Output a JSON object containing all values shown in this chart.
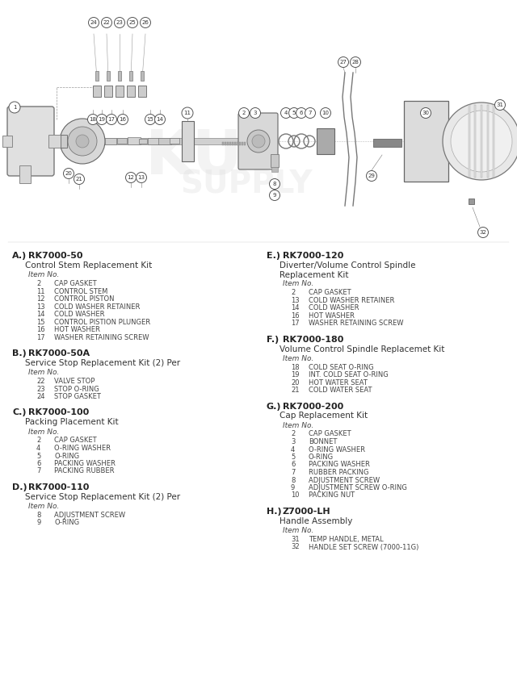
{
  "bg_color": "#ffffff",
  "sections_left": [
    {
      "label": "A.)",
      "kit_id": "RK7000-50",
      "kit_name": "Control Stem Replacement Kit",
      "items": [
        {
          "num": "2",
          "desc": "CAP GASKET"
        },
        {
          "num": "11",
          "desc": "CONTROL STEM"
        },
        {
          "num": "12",
          "desc": "CONTROL PISTON"
        },
        {
          "num": "13",
          "desc": "COLD WASHER RETAINER"
        },
        {
          "num": "14",
          "desc": "COLD WASHER"
        },
        {
          "num": "15",
          "desc": "CONTROL PISTION PLUNGER"
        },
        {
          "num": "16",
          "desc": "HOT WASHER"
        },
        {
          "num": "17",
          "desc": "WASHER RETAINING SCREW"
        }
      ]
    },
    {
      "label": "B.)",
      "kit_id": "RK7000-50A",
      "kit_name": "Service Stop Replacement Kit (2) Per",
      "items": [
        {
          "num": "22",
          "desc": "VALVE STOP"
        },
        {
          "num": "23",
          "desc": "STOP O-RING"
        },
        {
          "num": "24",
          "desc": "STOP GASKET"
        }
      ]
    },
    {
      "label": "C.)",
      "kit_id": "RK7000-100",
      "kit_name": "Packing Placement Kit",
      "items": [
        {
          "num": "2",
          "desc": "CAP GASKET"
        },
        {
          "num": "4",
          "desc": "O-RING WASHER"
        },
        {
          "num": "5",
          "desc": "O-RING"
        },
        {
          "num": "6",
          "desc": "PACKING WASHER"
        },
        {
          "num": "7",
          "desc": "PACKING RUBBER"
        }
      ]
    },
    {
      "label": "D.)",
      "kit_id": "RK7000-110",
      "kit_name": "Service Stop Replacement Kit (2) Per",
      "items": [
        {
          "num": "8",
          "desc": "ADJUSTMENT SCREW"
        },
        {
          "num": "9",
          "desc": "O-RING"
        }
      ]
    }
  ],
  "sections_right": [
    {
      "label": "E.)",
      "kit_id": "RK7000-120",
      "kit_name": "Diverter/Volume Control Spindle",
      "kit_name2": "Replacement Kit",
      "items": [
        {
          "num": "2",
          "desc": "CAP GASKET"
        },
        {
          "num": "13",
          "desc": "COLD WASHER RETAINER"
        },
        {
          "num": "14",
          "desc": "COLD WASHER"
        },
        {
          "num": "16",
          "desc": "HOT WASHER"
        },
        {
          "num": "17",
          "desc": "WASHER RETAINING SCREW"
        }
      ]
    },
    {
      "label": "F.)",
      "kit_id": "RK7000-180",
      "kit_name": "Volume Control Spindle Replacemet Kit",
      "kit_name2": "",
      "items": [
        {
          "num": "18",
          "desc": "COLD SEAT O-RING"
        },
        {
          "num": "19",
          "desc": "INT. COLD SEAT O-RING"
        },
        {
          "num": "20",
          "desc": "HOT WATER SEAT"
        },
        {
          "num": "21",
          "desc": "COLD WATER SEAT"
        }
      ]
    },
    {
      "label": "G.)",
      "kit_id": "RK7000-200",
      "kit_name": "Cap Replacement Kit",
      "kit_name2": "",
      "items": [
        {
          "num": "2",
          "desc": "CAP GASKET"
        },
        {
          "num": "3",
          "desc": "BONNET"
        },
        {
          "num": "4",
          "desc": "O-RING WASHER"
        },
        {
          "num": "5",
          "desc": "O-RING"
        },
        {
          "num": "6",
          "desc": "PACKING WASHER"
        },
        {
          "num": "7",
          "desc": "RUBBER PACKING"
        },
        {
          "num": "8",
          "desc": "ADJUSTMENT SCREW"
        },
        {
          "num": "9",
          "desc": "ADJUSTMENT SCREW O-RING"
        },
        {
          "num": "10",
          "desc": "PACKING NUT"
        }
      ]
    },
    {
      "label": "H.)",
      "kit_id": "Z7000-LH",
      "kit_name": "Handle Assembly",
      "kit_name2": "",
      "items": [
        {
          "num": "31",
          "desc": "TEMP HANDLE, METAL"
        },
        {
          "num": "32",
          "desc": "HANDLE SET SCREW (7000-11G)"
        }
      ]
    }
  ]
}
